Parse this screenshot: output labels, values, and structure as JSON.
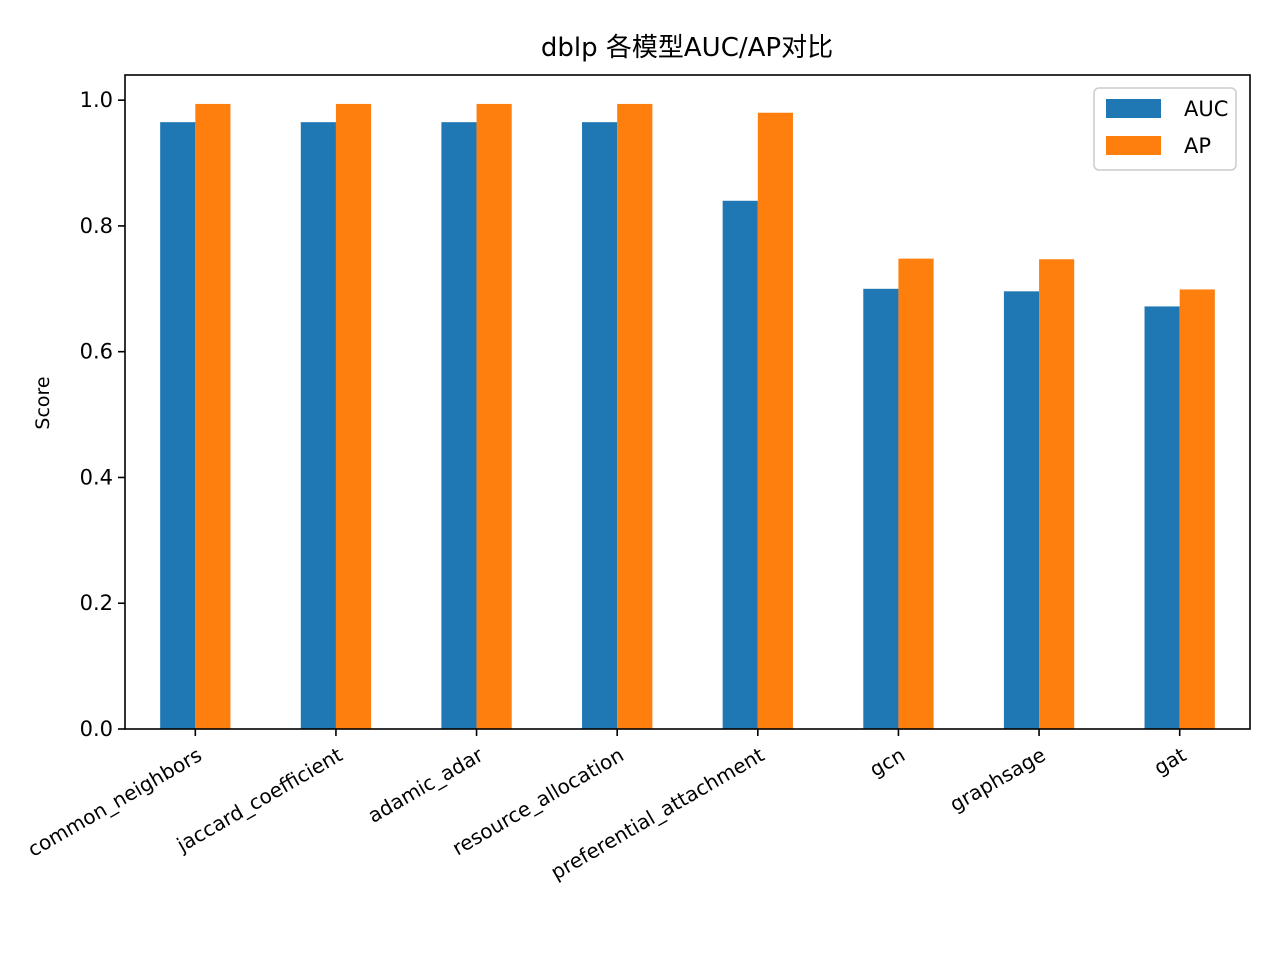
{
  "chart_data": {
    "type": "bar",
    "title": "dblp 各模型AUC/AP对比",
    "xlabel": "",
    "ylabel": "Score",
    "ylim": [
      0,
      1.04
    ],
    "yticks": [
      "0.0",
      "0.2",
      "0.4",
      "0.6",
      "0.8",
      "1.0"
    ],
    "ytick_values": [
      0,
      0.2,
      0.4,
      0.6,
      0.8,
      1.0
    ],
    "grid": false,
    "legend_position": "top-right",
    "categories": [
      "common_neighbors",
      "jaccard_coefficient",
      "adamic_adar",
      "resource_allocation",
      "preferential_attachment",
      "gcn",
      "graphsage",
      "gat"
    ],
    "series": [
      {
        "name": "AUC",
        "color": "#1f77b4",
        "values": [
          0.965,
          0.965,
          0.965,
          0.965,
          0.84,
          0.7,
          0.696,
          0.672
        ]
      },
      {
        "name": "AP",
        "color": "#ff7f0e",
        "values": [
          0.994,
          0.994,
          0.994,
          0.994,
          0.98,
          0.748,
          0.747,
          0.699
        ]
      }
    ]
  }
}
